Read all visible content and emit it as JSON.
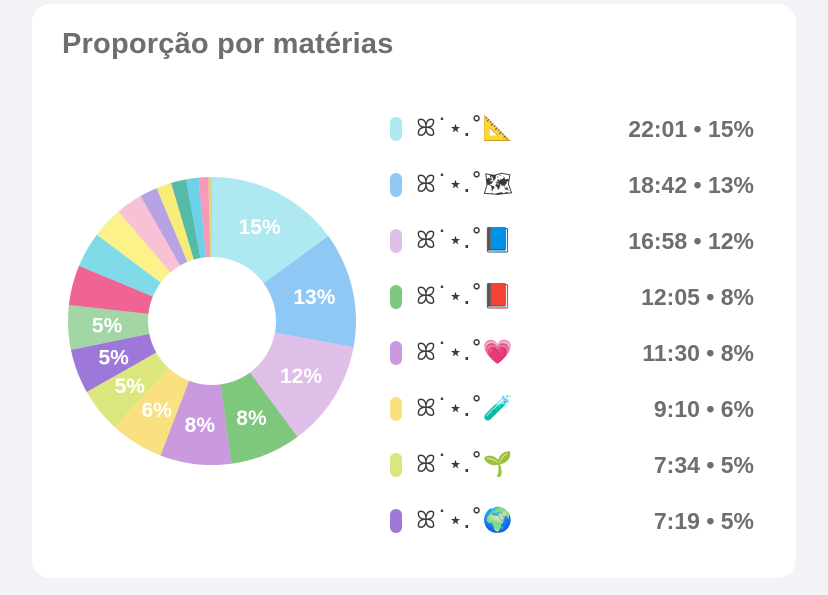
{
  "card": {
    "title": "Proporção por matérias"
  },
  "chart_data": {
    "type": "pie",
    "donut": true,
    "slices": [
      {
        "value": 15,
        "label": "15%",
        "color": "#aee8f1"
      },
      {
        "value": 13,
        "label": "13%",
        "color": "#90c8f5"
      },
      {
        "value": 12,
        "label": "12%",
        "color": "#dfbfe8"
      },
      {
        "value": 8,
        "label": "8%",
        "color": "#7ec87d"
      },
      {
        "value": 8,
        "label": "8%",
        "color": "#c99add"
      },
      {
        "value": 6,
        "label": "6%",
        "color": "#fbe082"
      },
      {
        "value": 5,
        "label": "5%",
        "color": "#dbe77c"
      },
      {
        "value": 5,
        "label": "5%",
        "color": "#9e78d8"
      },
      {
        "value": 5,
        "label": "5%",
        "color": "#a2d6a4"
      },
      {
        "value": 4.5,
        "label": "",
        "color": "#ef6494"
      },
      {
        "value": 4,
        "label": "",
        "color": "#7fdbe8"
      },
      {
        "value": 3.5,
        "label": "",
        "color": "#fdf189"
      },
      {
        "value": 3,
        "label": "",
        "color": "#f8c1d6"
      },
      {
        "value": 2,
        "label": "",
        "color": "#b7a2e2"
      },
      {
        "value": 1.7,
        "label": "",
        "color": "#f7ec78"
      },
      {
        "value": 1.7,
        "label": "",
        "color": "#55bba6"
      },
      {
        "value": 1.4,
        "label": "",
        "color": "#6ed1ea"
      },
      {
        "value": 1.1,
        "label": "",
        "color": "#f79aba"
      },
      {
        "value": 0.4,
        "label": "",
        "color": "#cfe07a"
      }
    ]
  },
  "legend": [
    {
      "name": "ꕤ˙⋆.˚📐",
      "value": "22:01 • 15%",
      "color": "#aee8f1"
    },
    {
      "name": "ꕤ˙⋆.˚🗺",
      "value": "18:42 • 13%",
      "color": "#90c8f5"
    },
    {
      "name": "ꕤ˙⋆.˚📘",
      "value": "16:58 • 12%",
      "color": "#dfbfe8"
    },
    {
      "name": "ꕤ˙⋆.˚📕",
      "value": "12:05 • 8%",
      "color": "#7ec87d"
    },
    {
      "name": "ꕤ˙⋆.˚💗",
      "value": "11:30 • 8%",
      "color": "#c99add"
    },
    {
      "name": "ꕤ˙⋆.˚🧪",
      "value": "9:10 • 6%",
      "color": "#fbe082"
    },
    {
      "name": "ꕤ˙⋆.˚🌱",
      "value": "7:34 • 5%",
      "color": "#dbe77c"
    },
    {
      "name": "ꕤ˙⋆.˚🌍",
      "value": "7:19 • 5%",
      "color": "#9e78d8"
    }
  ]
}
